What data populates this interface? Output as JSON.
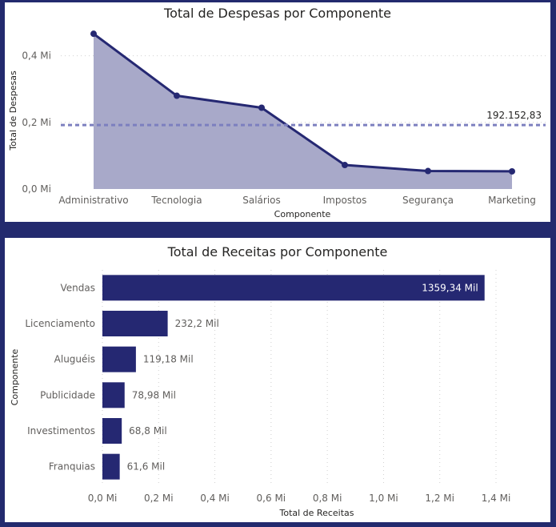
{
  "charts": [
    {
      "type": "area",
      "title": "Total de Despesas por Componente",
      "xlabel": "Componente",
      "ylabel": "Total de Despesas",
      "categories": [
        "Administrativo",
        "Tecnologia",
        "Salários",
        "Impostos",
        "Segurança",
        "Marketing"
      ],
      "values": [
        466000,
        280000,
        244000,
        72000,
        54000,
        53000
      ],
      "ylim": [
        0,
        500000
      ],
      "yticks": [
        0,
        200000,
        400000
      ],
      "ytick_labels": [
        "0,0 Mi",
        "0,2 Mi",
        "0,4 Mi"
      ],
      "reference_line": {
        "value": 192152.83,
        "label": "192.152,83"
      },
      "grid": true,
      "colors": {
        "line": "#252872",
        "area": "#a8a9c9",
        "reference": "#7c7fbf"
      }
    },
    {
      "type": "bar",
      "orientation": "horizontal",
      "title": "Total de Receitas por Componente",
      "xlabel": "Total de Receitas",
      "ylabel": "Componente",
      "categories": [
        "Vendas",
        "Licenciamento",
        "Aluguéis",
        "Publicidade",
        "Investimentos",
        "Franquias"
      ],
      "values": [
        1359340,
        232200,
        119180,
        78980,
        68800,
        61600
      ],
      "data_labels": [
        "1359,34 Mil",
        "232,2 Mil",
        "119,18 Mil",
        "78,98 Mil",
        "68,8 Mil",
        "61,6 Mil"
      ],
      "xlim": [
        0,
        1400000
      ],
      "xticks": [
        0,
        200000,
        400000,
        600000,
        800000,
        1000000,
        1200000,
        1400000
      ],
      "xtick_labels": [
        "0,0 Mi",
        "0,2 Mi",
        "0,4 Mi",
        "0,6 Mi",
        "0,8 Mi",
        "1,0 Mi",
        "1,2 Mi",
        "1,4 Mi"
      ],
      "grid": true,
      "colors": {
        "bar": "#252872"
      }
    }
  ]
}
